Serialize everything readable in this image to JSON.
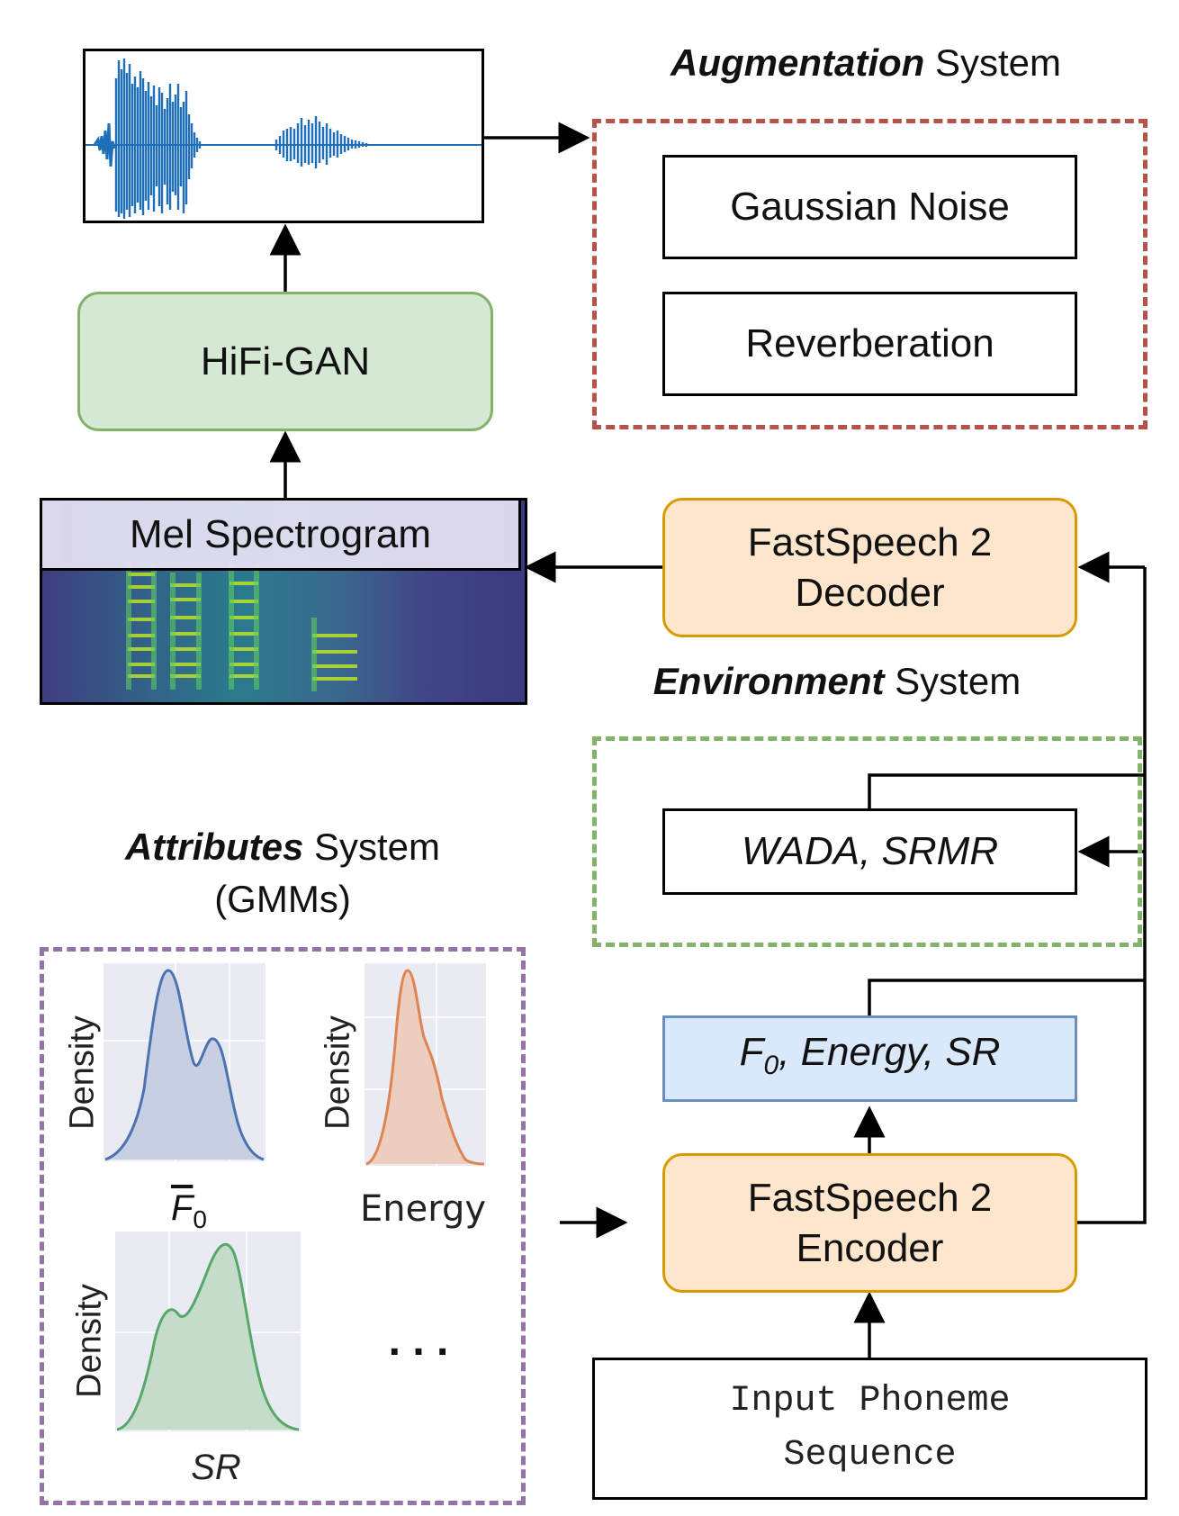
{
  "augmentation": {
    "title_bold": "Augmentation",
    "title_rest": " System",
    "items": [
      "Gaussian Noise",
      "Reverberation"
    ],
    "border_color": "#b5524a"
  },
  "hifigan": {
    "label": "HiFi-GAN",
    "fill": "#d5e8d4",
    "border": "#82b366"
  },
  "mel": {
    "label": "Mel Spectrogram"
  },
  "decoder": {
    "line1": "FastSpeech 2",
    "line2": "Decoder",
    "fill": "#fde6cc",
    "border": "#d79b00"
  },
  "environment": {
    "title_bold": "Environment",
    "title_rest": " System",
    "item": "WADA, SRMR",
    "border_color": "#82b366"
  },
  "attributes": {
    "title_bold": "Attributes",
    "title_rest": " System",
    "subtitle": "(GMMs)",
    "border_color": "#9673a6",
    "plots": [
      {
        "ylabel": "Density",
        "xlabel_main": "F",
        "xlabel_sub": "0",
        "color": "#4c72b0",
        "fill": "#c7d0e3"
      },
      {
        "ylabel": "Density",
        "xlabel": "Energy",
        "color": "#dd8452",
        "fill": "#edcdbd"
      },
      {
        "ylabel": "Density",
        "xlabel": "SR",
        "color": "#55a868",
        "fill": "#c6dccb"
      }
    ],
    "ellipsis": ". . ."
  },
  "features": {
    "label_f": "F",
    "label_sub": "0",
    "label_rest": ", Energy, SR",
    "fill": "#dae8fc",
    "border": "#6c8ebf"
  },
  "encoder": {
    "line1": "FastSpeech 2",
    "line2": "Encoder",
    "fill": "#fde6cc",
    "border": "#d79b00"
  },
  "input": {
    "line1": "Input Phoneme",
    "line2": "Sequence"
  }
}
